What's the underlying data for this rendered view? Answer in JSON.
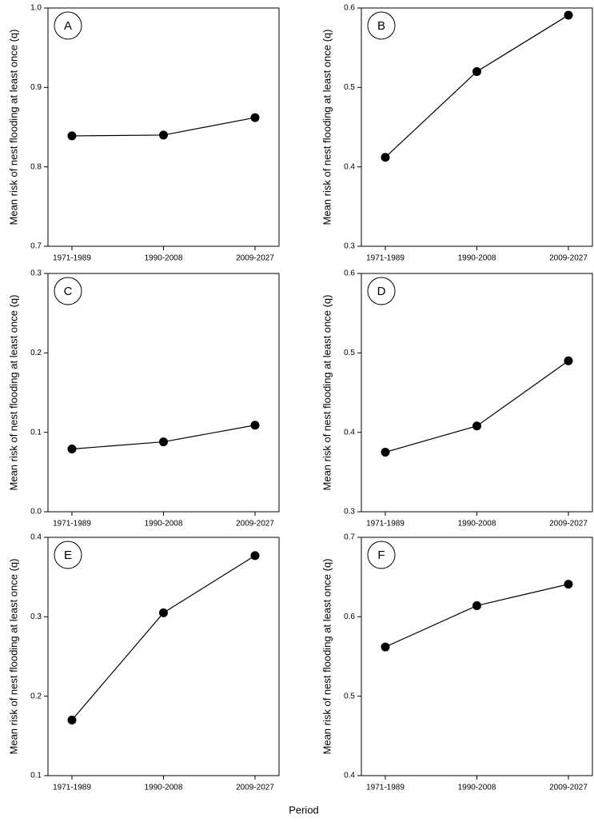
{
  "chart_data": [
    {
      "type": "line",
      "label": "A",
      "ylabel": "Mean risk of nest flooding at least once (q)",
      "categories": [
        "1971-1989",
        "1990-2008",
        "2009-2027"
      ],
      "values": [
        0.839,
        0.84,
        0.862
      ],
      "color": "#000000",
      "ylim": [
        0.7,
        1.0
      ],
      "yticks": [
        0.7,
        0.8,
        0.9,
        {
          "value": 1,
          "label": "1.0"
        }
      ]
    },
    {
      "type": "line",
      "label": "B",
      "ylabel": "Mean risk of nest flooding at least once (q)",
      "categories": [
        "1971-1989",
        "1990-2008",
        "2009-2027"
      ],
      "values": [
        0.412,
        0.52,
        0.591
      ],
      "color": "#000000",
      "ylim": [
        0.3,
        0.6
      ],
      "yticks": [
        0.3,
        0.4,
        0.5,
        0.6
      ]
    },
    {
      "type": "line",
      "label": "C",
      "ylabel": "Mean risk of nest flooding at least once (q)",
      "categories": [
        "1971-1989",
        "1990-2008",
        "2009-2027"
      ],
      "values": [
        0.079,
        0.088,
        0.109
      ],
      "color": "#000000",
      "ylim": [
        0,
        0.3
      ],
      "yticks": [
        {
          "value": 0,
          "label": "0.0"
        },
        0.1,
        0.2,
        0.3
      ]
    },
    {
      "type": "line",
      "label": "D",
      "ylabel": "Mean risk of nest flooding at least once (q)",
      "categories": [
        "1971-1989",
        "1990-2008",
        "2009-2027"
      ],
      "values": [
        0.375,
        0.408,
        0.49
      ],
      "color": "#000000",
      "ylim": [
        0.3,
        0.6
      ],
      "yticks": [
        0.3,
        0.4,
        0.5,
        0.6
      ]
    },
    {
      "type": "line",
      "label": "E",
      "ylabel": "Mean risk of nest flooding at least once (q)",
      "categories": [
        "1971-1989",
        "1990-2008",
        "2009-2027"
      ],
      "values": [
        0.17,
        0.305,
        0.377
      ],
      "color": "#000000",
      "ylim": [
        0.1,
        0.4
      ],
      "yticks": [
        0.1,
        0.2,
        0.3,
        0.4
      ]
    },
    {
      "type": "line",
      "label": "F",
      "ylabel": "Mean risk of nest flooding at least once (q)",
      "categories": [
        "1971-1989",
        "1990-2008",
        "2009-2027"
      ],
      "values": [
        0.562,
        0.614,
        0.641
      ],
      "color": "#000000",
      "ylim": [
        0.4,
        0.7
      ],
      "yticks": [
        0.4,
        0.5,
        0.6,
        0.7
      ]
    }
  ],
  "xlabel": "Period"
}
